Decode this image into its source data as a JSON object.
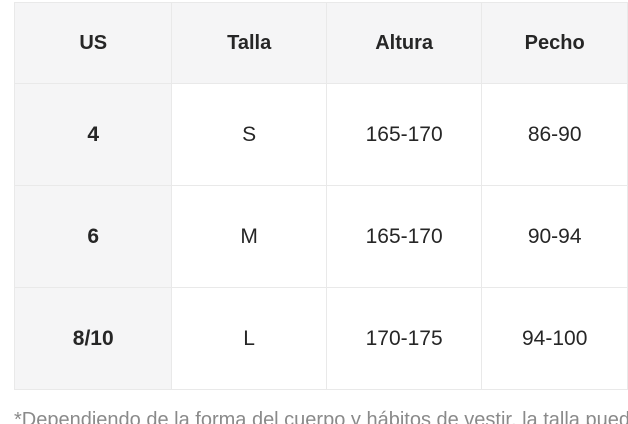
{
  "chart_data": {
    "type": "table",
    "title": "",
    "columns": [
      "US",
      "Talla",
      "Altura",
      "Pecho"
    ],
    "rows": [
      [
        "4",
        "S",
        "165-170",
        "86-90"
      ],
      [
        "6",
        "M",
        "165-170",
        "90-94"
      ],
      [
        "8/10",
        "L",
        "170-175",
        "94-100"
      ]
    ],
    "layout_hints": {
      "header_row_shaded": true,
      "first_column_shaded": true,
      "grid_on": true,
      "right_edge_clipped": true
    }
  },
  "footnote": "*Dependiendo de la forma del cuerpo y hábitos de vestir, la talla puede variar.",
  "colors": {
    "header_bg": "#f5f5f6",
    "border": "#e9e9e9",
    "cell_text": "#262626",
    "footnote_text": "#8a8a8a",
    "page_bg": "#ffffff"
  }
}
